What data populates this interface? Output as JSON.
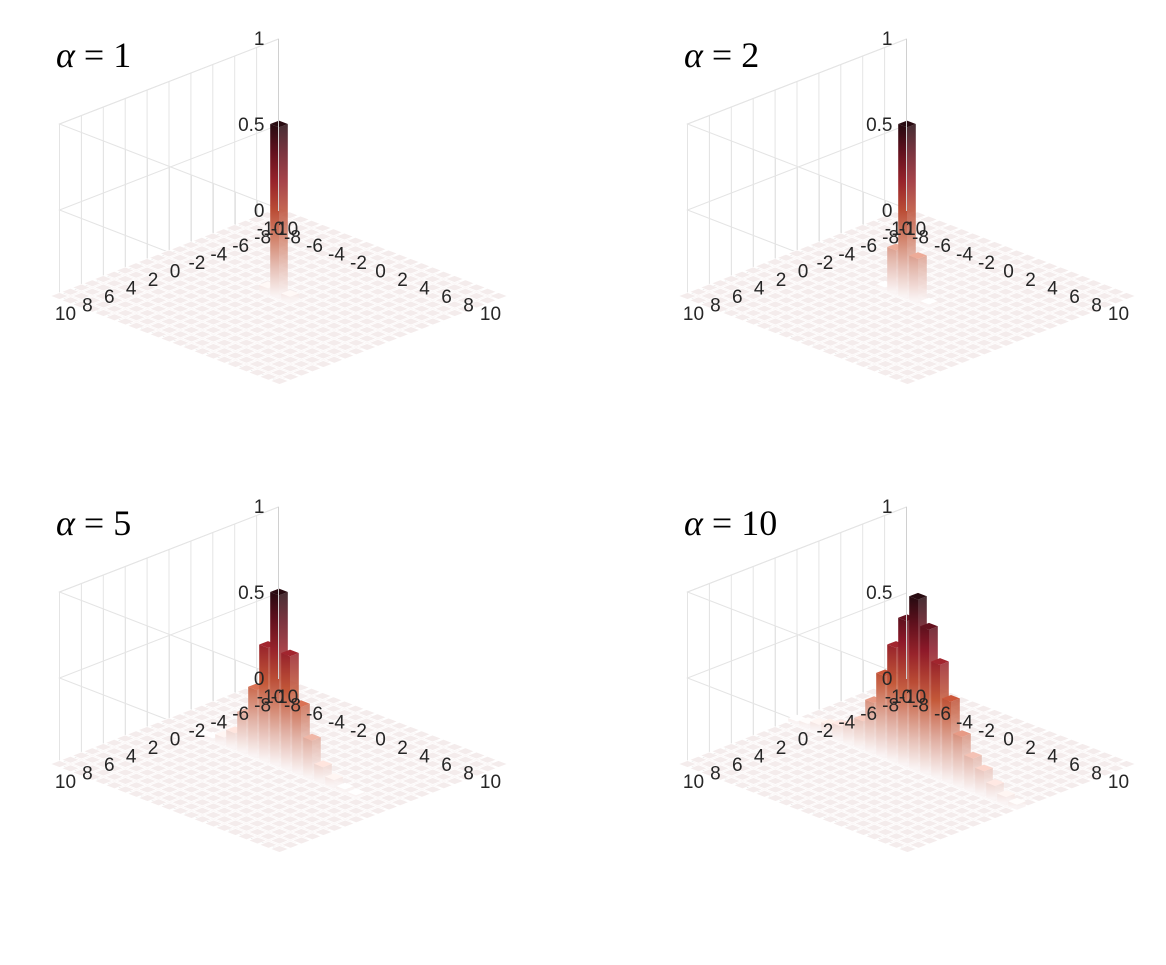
{
  "chart_data": [
    {
      "type": "bar3d",
      "title_symbol": "α",
      "title_operator": "=",
      "title_value": "1",
      "grid": true,
      "x_ticks": [
        "-10",
        "-8",
        "-6",
        "-4",
        "-2",
        "0",
        "2",
        "4",
        "6",
        "8",
        "10"
      ],
      "y_ticks": [
        "-10",
        "-8",
        "-6",
        "-4",
        "-2",
        "0",
        "2",
        "4",
        "6",
        "8",
        "10"
      ],
      "z_ticks": [
        "0",
        "0.5",
        "1"
      ],
      "xlim": [
        -10,
        10
      ],
      "ylim": [
        -10,
        10
      ],
      "zlim": [
        0,
        1
      ],
      "x_values": [
        -10,
        -9,
        -8,
        -7,
        -6,
        -5,
        -4,
        -3,
        -2,
        -1,
        0,
        1,
        2,
        3,
        4,
        5,
        6,
        7,
        8,
        9,
        10
      ],
      "z_values": [
        0,
        0,
        0,
        0,
        0,
        0,
        0,
        0,
        0,
        0.04,
        1,
        0.04,
        0,
        0,
        0,
        0,
        0,
        0,
        0,
        0,
        0
      ]
    },
    {
      "type": "bar3d",
      "title_symbol": "α",
      "title_operator": "=",
      "title_value": "2",
      "grid": true,
      "x_ticks": [
        "-10",
        "-8",
        "-6",
        "-4",
        "-2",
        "0",
        "2",
        "4",
        "6",
        "8",
        "10"
      ],
      "y_ticks": [
        "-10",
        "-8",
        "-6",
        "-4",
        "-2",
        "0",
        "2",
        "4",
        "6",
        "8",
        "10"
      ],
      "z_ticks": [
        "0",
        "0.5",
        "1"
      ],
      "xlim": [
        -10,
        10
      ],
      "ylim": [
        -10,
        10
      ],
      "zlim": [
        0,
        1
      ],
      "x_values": [
        -10,
        -9,
        -8,
        -7,
        -6,
        -5,
        -4,
        -3,
        -2,
        -1,
        0,
        1,
        2,
        3,
        4,
        5,
        6,
        7,
        8,
        9,
        10
      ],
      "z_values": [
        0,
        0,
        0,
        0,
        0,
        0,
        0,
        0,
        0.02,
        0.26,
        1,
        0.26,
        0.02,
        0,
        0,
        0,
        0,
        0,
        0,
        0,
        0
      ]
    },
    {
      "type": "bar3d",
      "title_symbol": "α",
      "title_operator": "=",
      "title_value": "5",
      "grid": true,
      "x_ticks": [
        "-10",
        "-8",
        "-6",
        "-4",
        "-2",
        "0",
        "2",
        "4",
        "6",
        "8",
        "10"
      ],
      "y_ticks": [
        "-10",
        "-8",
        "-6",
        "-4",
        "-2",
        "0",
        "2",
        "4",
        "6",
        "8",
        "10"
      ],
      "z_ticks": [
        "0",
        "0.5",
        "1"
      ],
      "xlim": [
        -10,
        10
      ],
      "ylim": [
        -10,
        10
      ],
      "zlim": [
        0,
        1
      ],
      "x_values": [
        -10,
        -9,
        -8,
        -7,
        -6,
        -5,
        -4,
        -3,
        -2,
        -1,
        0,
        1,
        2,
        3,
        4,
        5,
        6,
        7,
        8,
        9,
        10
      ],
      "z_values": [
        0,
        0,
        0,
        0.01,
        0.02,
        0.05,
        0.1,
        0.23,
        0.4,
        0.67,
        1,
        0.67,
        0.4,
        0.23,
        0.1,
        0.05,
        0.02,
        0.01,
        0,
        0,
        0
      ]
    },
    {
      "type": "bar3d",
      "title_symbol": "α",
      "title_operator": "=",
      "title_value": "10",
      "grid": true,
      "x_ticks": [
        "-10",
        "-8",
        "-6",
        "-4",
        "-2",
        "0",
        "2",
        "4",
        "6",
        "8",
        "10"
      ],
      "y_ticks": [
        "-10",
        "-8",
        "-6",
        "-4",
        "-2",
        "0",
        "2",
        "4",
        "6",
        "8",
        "10"
      ],
      "z_ticks": [
        "0",
        "0.5",
        "1"
      ],
      "xlim": [
        -10,
        10
      ],
      "ylim": [
        -10,
        10
      ],
      "zlim": [
        0,
        1
      ],
      "x_values": [
        -10,
        -9,
        -8,
        -7,
        -6,
        -5,
        -4,
        -3,
        -2,
        -1,
        0,
        1,
        2,
        3,
        4,
        5,
        6,
        7,
        8,
        9,
        10
      ],
      "z_values": [
        0.02,
        0.03,
        0.05,
        0.07,
        0.09,
        0.12,
        0.17,
        0.3,
        0.48,
        0.67,
        0.85,
        1,
        0.85,
        0.67,
        0.48,
        0.3,
        0.2,
        0.15,
        0.09,
        0.05,
        0.03
      ]
    }
  ]
}
